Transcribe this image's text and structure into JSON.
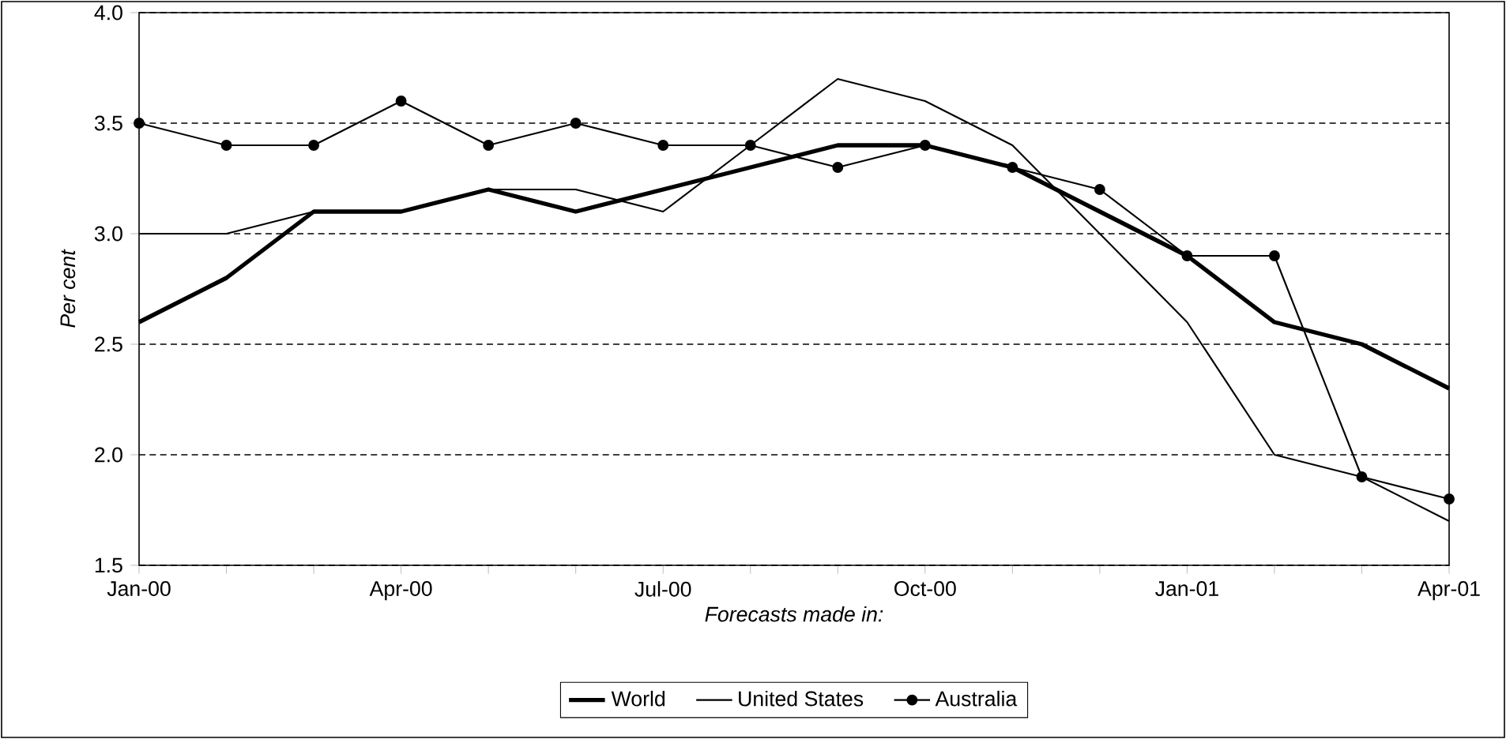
{
  "chart_data": {
    "type": "line",
    "xlabel": "Forecasts made in:",
    "ylabel": "Per cent",
    "categories": [
      "Jan-00",
      null,
      null,
      "Apr-00",
      null,
      null,
      "Jul-00",
      null,
      null,
      "Oct-00",
      null,
      null,
      "Jan-01",
      null,
      null,
      "Apr-01"
    ],
    "series": [
      {
        "name": "World",
        "color": "#000000",
        "marker": "none",
        "values": [
          2.6,
          2.8,
          3.1,
          3.1,
          3.2,
          3.1,
          3.2,
          3.3,
          3.4,
          3.4,
          3.3,
          3.1,
          2.9,
          2.6,
          2.5,
          2.3
        ]
      },
      {
        "name": "United States",
        "color": "#000000",
        "marker": "none",
        "values": [
          3.0,
          3.0,
          3.1,
          3.1,
          3.2,
          3.2,
          3.1,
          3.4,
          3.7,
          3.6,
          3.4,
          3.0,
          2.6,
          2.0,
          1.9,
          1.7
        ]
      },
      {
        "name": "Australia",
        "color": "#000000",
        "marker": "circle",
        "values": [
          3.5,
          3.4,
          3.4,
          3.6,
          3.4,
          3.5,
          3.4,
          3.4,
          3.3,
          3.4,
          3.3,
          3.2,
          2.9,
          2.9,
          1.9,
          1.8
        ]
      }
    ],
    "ylim": [
      1.5,
      4.0
    ],
    "yticks": [
      {
        "value": 1.5,
        "label": "1.5"
      },
      {
        "value": 2.0,
        "label": "2.0"
      },
      {
        "value": 2.5,
        "label": "2.5"
      },
      {
        "value": 3.0,
        "label": "3.0"
      },
      {
        "value": 3.5,
        "label": "3.5"
      },
      {
        "value": 4.0,
        "label": "4.0"
      }
    ],
    "grid": "y",
    "legend": "bottom",
    "line_style": "solid"
  }
}
